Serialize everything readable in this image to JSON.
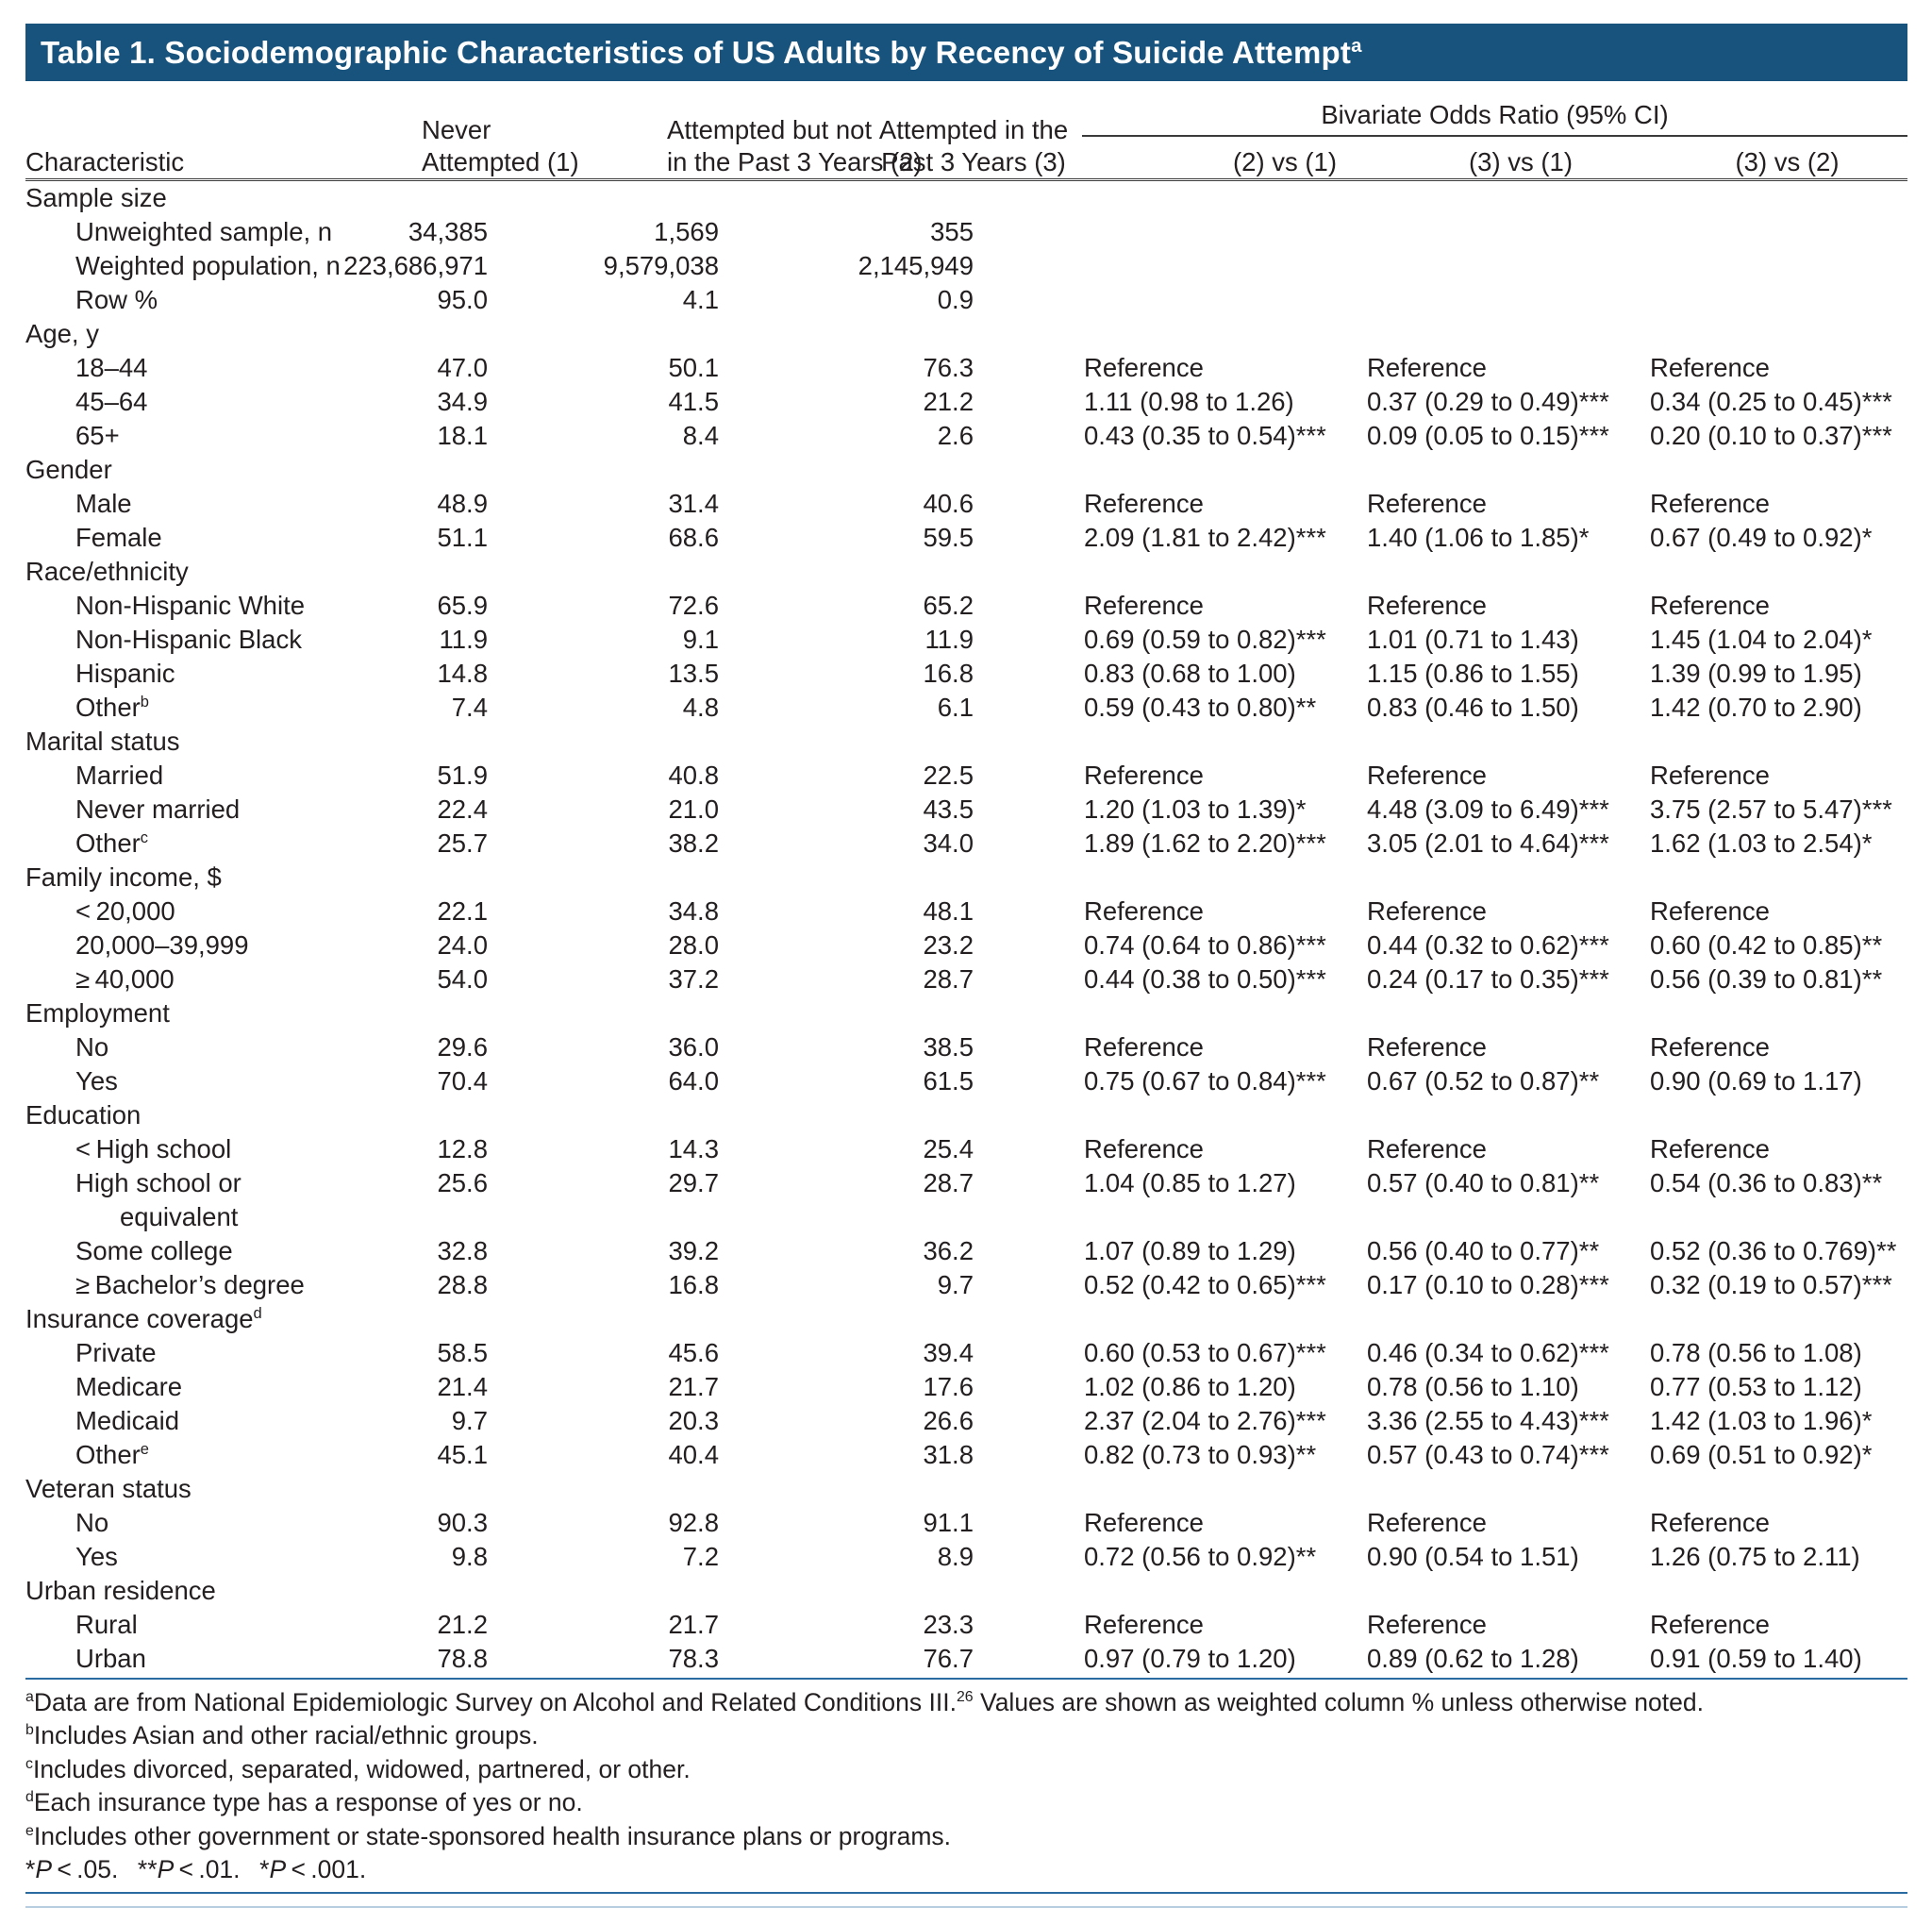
{
  "colors": {
    "title_bar": "#17537d",
    "rule_blue": "#2a6ba2",
    "rule_blue_light": "#b7cde0",
    "header_rule": "#3b3b3b"
  },
  "title": {
    "text": "Table 1. Sociodemographic Characteristics of US Adults by Recency of Suicide Attempt",
    "sup": "a"
  },
  "header": {
    "characteristic": "Characteristic",
    "col1_line1": "Never",
    "col1_line2": "Attempted (1)",
    "col2_line1": "Attempted but not",
    "col2_line2": "in the Past 3 Years (2)",
    "col3_line1": "Attempted in the",
    "col3_line2": "Past 3 Years (3)",
    "spanner": "Bivariate Odds Ratio (95% CI)",
    "or_cols": [
      "(2) vs (1)",
      "(3) vs (1)",
      "(3) vs (2)"
    ]
  },
  "sections": [
    {
      "label": "Sample size",
      "rows": [
        {
          "label": "Unweighted sample, n",
          "c": [
            "34,385",
            "1,569",
            "355"
          ],
          "or": [
            "",
            "",
            ""
          ]
        },
        {
          "label": "Weighted population, n",
          "c": [
            "223,686,971",
            "9,579,038",
            "2,145,949"
          ],
          "or": [
            "",
            "",
            ""
          ]
        },
        {
          "label": "Row %",
          "c": [
            "95.0",
            "4.1",
            "0.9"
          ],
          "or": [
            "",
            "",
            ""
          ]
        }
      ]
    },
    {
      "label": "Age, y",
      "rows": [
        {
          "label": "18–44",
          "c": [
            "47.0",
            "50.1",
            "76.3"
          ],
          "or": [
            "Reference",
            "Reference",
            "Reference"
          ]
        },
        {
          "label": "45–64",
          "c": [
            "34.9",
            "41.5",
            "21.2"
          ],
          "or": [
            "1.11 (0.98 to 1.26)",
            "0.37 (0.29 to 0.49)***",
            "0.34 (0.25 to 0.45)***"
          ]
        },
        {
          "label": "65+",
          "c": [
            "18.1",
            "8.4",
            "2.6"
          ],
          "or": [
            "0.43 (0.35 to 0.54)***",
            "0.09 (0.05 to 0.15)***",
            "0.20 (0.10 to 0.37)***"
          ]
        }
      ]
    },
    {
      "label": "Gender",
      "rows": [
        {
          "label": "Male",
          "c": [
            "48.9",
            "31.4",
            "40.6"
          ],
          "or": [
            "Reference",
            "Reference",
            "Reference"
          ]
        },
        {
          "label": "Female",
          "c": [
            "51.1",
            "68.6",
            "59.5"
          ],
          "or": [
            "2.09 (1.81 to 2.42)***",
            "1.40 (1.06 to 1.85)*",
            "0.67 (0.49 to 0.92)*"
          ]
        }
      ]
    },
    {
      "label": "Race/ethnicity",
      "rows": [
        {
          "label": "Non-Hispanic White",
          "c": [
            "65.9",
            "72.6",
            "65.2"
          ],
          "or": [
            "Reference",
            "Reference",
            "Reference"
          ]
        },
        {
          "label": "Non-Hispanic Black",
          "c": [
            "11.9",
            "9.1",
            "11.9"
          ],
          "or": [
            "0.69 (0.59 to 0.82)***",
            "1.01 (0.71 to 1.43)",
            "1.45 (1.04 to 2.04)*"
          ]
        },
        {
          "label": "Hispanic",
          "c": [
            "14.8",
            "13.5",
            "16.8"
          ],
          "or": [
            "0.83 (0.68 to 1.00)",
            "1.15 (0.86 to 1.55)",
            "1.39 (0.99 to 1.95)"
          ]
        },
        {
          "label": "Other",
          "sup": "b",
          "c": [
            "7.4",
            "4.8",
            "6.1"
          ],
          "or": [
            "0.59 (0.43 to 0.80)**",
            "0.83 (0.46 to 1.50)",
            "1.42 (0.70 to 2.90)"
          ]
        }
      ]
    },
    {
      "label": "Marital status",
      "rows": [
        {
          "label": "Married",
          "c": [
            "51.9",
            "40.8",
            "22.5"
          ],
          "or": [
            "Reference",
            "Reference",
            "Reference"
          ]
        },
        {
          "label": "Never married",
          "c": [
            "22.4",
            "21.0",
            "43.5"
          ],
          "or": [
            "1.20 (1.03 to 1.39)*",
            "4.48 (3.09 to 6.49)***",
            "3.75 (2.57 to 5.47)***"
          ]
        },
        {
          "label": "Other",
          "sup": "c",
          "c": [
            "25.7",
            "38.2",
            "34.0"
          ],
          "or": [
            "1.89 (1.62 to 2.20)***",
            "3.05 (2.01 to 4.64)***",
            "1.62 (1.03 to 2.54)*"
          ]
        }
      ]
    },
    {
      "label": "Family income, $",
      "rows": [
        {
          "label": "< 20,000",
          "c": [
            "22.1",
            "34.8",
            "48.1"
          ],
          "or": [
            "Reference",
            "Reference",
            "Reference"
          ]
        },
        {
          "label": "20,000–39,999",
          "c": [
            "24.0",
            "28.0",
            "23.2"
          ],
          "or": [
            "0.74 (0.64 to 0.86)***",
            "0.44 (0.32 to 0.62)***",
            "0.60 (0.42 to 0.85)**"
          ]
        },
        {
          "label": "≥ 40,000",
          "c": [
            "54.0",
            "37.2",
            "28.7"
          ],
          "or": [
            "0.44 (0.38 to 0.50)***",
            "0.24 (0.17 to 0.35)***",
            "0.56 (0.39 to 0.81)**"
          ]
        }
      ]
    },
    {
      "label": "Employment",
      "rows": [
        {
          "label": "No",
          "c": [
            "29.6",
            "36.0",
            "38.5"
          ],
          "or": [
            "Reference",
            "Reference",
            "Reference"
          ]
        },
        {
          "label": "Yes",
          "c": [
            "70.4",
            "64.0",
            "61.5"
          ],
          "or": [
            "0.75 (0.67 to 0.84)***",
            "0.67 (0.52 to 0.87)**",
            "0.90 (0.69 to 1.17)"
          ]
        }
      ]
    },
    {
      "label": "Education",
      "rows": [
        {
          "label": "< High school",
          "c": [
            "12.8",
            "14.3",
            "25.4"
          ],
          "or": [
            "Reference",
            "Reference",
            "Reference"
          ]
        },
        {
          "label": "High school or",
          "label2": "equivalent",
          "c": [
            "25.6",
            "29.7",
            "28.7"
          ],
          "or": [
            "1.04 (0.85 to 1.27)",
            "0.57 (0.40 to 0.81)**",
            "0.54 (0.36 to 0.83)**"
          ]
        },
        {
          "label": "Some college",
          "c": [
            "32.8",
            "39.2",
            "36.2"
          ],
          "or": [
            "1.07 (0.89 to 1.29)",
            "0.56 (0.40 to 0.77)**",
            "0.52 (0.36 to 0.769)**"
          ]
        },
        {
          "label": "≥ Bachelor’s degree",
          "c": [
            "28.8",
            "16.8",
            "9.7"
          ],
          "or": [
            "0.52 (0.42 to 0.65)***",
            "0.17 (0.10 to 0.28)***",
            "0.32 (0.19 to 0.57)***"
          ]
        }
      ]
    },
    {
      "label": "Insurance coverage",
      "sup": "d",
      "rows": [
        {
          "label": "Private",
          "c": [
            "58.5",
            "45.6",
            "39.4"
          ],
          "or": [
            "0.60 (0.53 to 0.67)***",
            "0.46 (0.34 to 0.62)***",
            "0.78 (0.56 to 1.08)"
          ]
        },
        {
          "label": "Medicare",
          "c": [
            "21.4",
            "21.7",
            "17.6"
          ],
          "or": [
            "1.02 (0.86 to 1.20)",
            "0.78 (0.56 to 1.10)",
            "0.77 (0.53 to 1.12)"
          ]
        },
        {
          "label": "Medicaid",
          "c": [
            "9.7",
            "20.3",
            "26.6"
          ],
          "or": [
            "2.37 (2.04 to 2.76)***",
            "3.36 (2.55 to 4.43)***",
            "1.42 (1.03 to 1.96)*"
          ]
        },
        {
          "label": "Other",
          "sup": "e",
          "c": [
            "45.1",
            "40.4",
            "31.8"
          ],
          "or": [
            "0.82 (0.73 to 0.93)**",
            "0.57 (0.43 to 0.74)***",
            "0.69 (0.51 to 0.92)*"
          ]
        }
      ]
    },
    {
      "label": "Veteran status",
      "rows": [
        {
          "label": "No",
          "c": [
            "90.3",
            "92.8",
            "91.1"
          ],
          "or": [
            "Reference",
            "Reference",
            "Reference"
          ]
        },
        {
          "label": "Yes",
          "c": [
            "9.8",
            "7.2",
            "8.9"
          ],
          "or": [
            "0.72 (0.56 to 0.92)**",
            "0.90 (0.54 to 1.51)",
            "1.26 (0.75 to 2.11)"
          ]
        }
      ]
    },
    {
      "label": "Urban residence",
      "rows": [
        {
          "label": "Rural",
          "c": [
            "21.2",
            "21.7",
            "23.3"
          ],
          "or": [
            "Reference",
            "Reference",
            "Reference"
          ]
        },
        {
          "label": "Urban",
          "c": [
            "78.8",
            "78.3",
            "76.7"
          ],
          "or": [
            "0.97 (0.79 to 1.20)",
            "0.89 (0.62 to 1.28)",
            "0.91 (0.59 to 1.40)"
          ]
        }
      ]
    }
  ],
  "footnotes": [
    [
      {
        "sup": "a"
      },
      {
        "t": "Data are from National Epidemiologic Survey on Alcohol and Related Conditions III."
      },
      {
        "sup": "26"
      },
      {
        "t": " Values are shown as weighted column % unless otherwise noted."
      }
    ],
    [
      {
        "sup": "b"
      },
      {
        "t": "Includes Asian and other racial/ethnic groups."
      }
    ],
    [
      {
        "sup": "c"
      },
      {
        "t": "Includes divorced, separated, widowed, partnered, or other."
      }
    ],
    [
      {
        "sup": "d"
      },
      {
        "t": "Each insurance type has a response of yes or no."
      }
    ],
    [
      {
        "sup": "e"
      },
      {
        "t": "Includes other government or state-sponsored health insurance plans or programs."
      }
    ],
    [
      {
        "t": "*"
      },
      {
        "t": "P",
        "i": true
      },
      {
        "t": " < .05.  "
      },
      {
        "t": "**"
      },
      {
        "t": "P",
        "i": true
      },
      {
        "t": " < .01.  "
      },
      {
        "t": "*"
      },
      {
        "t": "P",
        "i": true
      },
      {
        "t": " < .001."
      }
    ]
  ]
}
